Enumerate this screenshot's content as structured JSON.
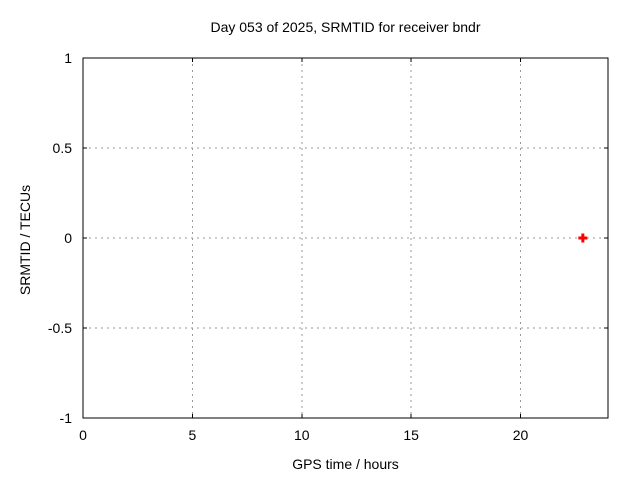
{
  "chart_data": {
    "type": "scatter",
    "title": "Day 053 of 2025, SRMTID for receiver bndr",
    "xlabel": "GPS time / hours",
    "ylabel": "SRMTID / TECUs",
    "xlim": [
      0,
      24
    ],
    "ylim": [
      -1,
      1
    ],
    "xticks": [
      0,
      5,
      10,
      15,
      20
    ],
    "yticks": [
      -1,
      -0.5,
      0,
      0.5,
      1
    ],
    "grid": true,
    "legend": "none",
    "series": [
      {
        "name": "SRMTID",
        "marker": "plus",
        "color": "#ff0000",
        "points": [
          {
            "x": 22.85,
            "y": 0.0
          }
        ]
      }
    ],
    "colors": {
      "background": "#ffffff",
      "axis": "#000000",
      "grid": "#9a9a9a",
      "text": "#000000"
    }
  }
}
